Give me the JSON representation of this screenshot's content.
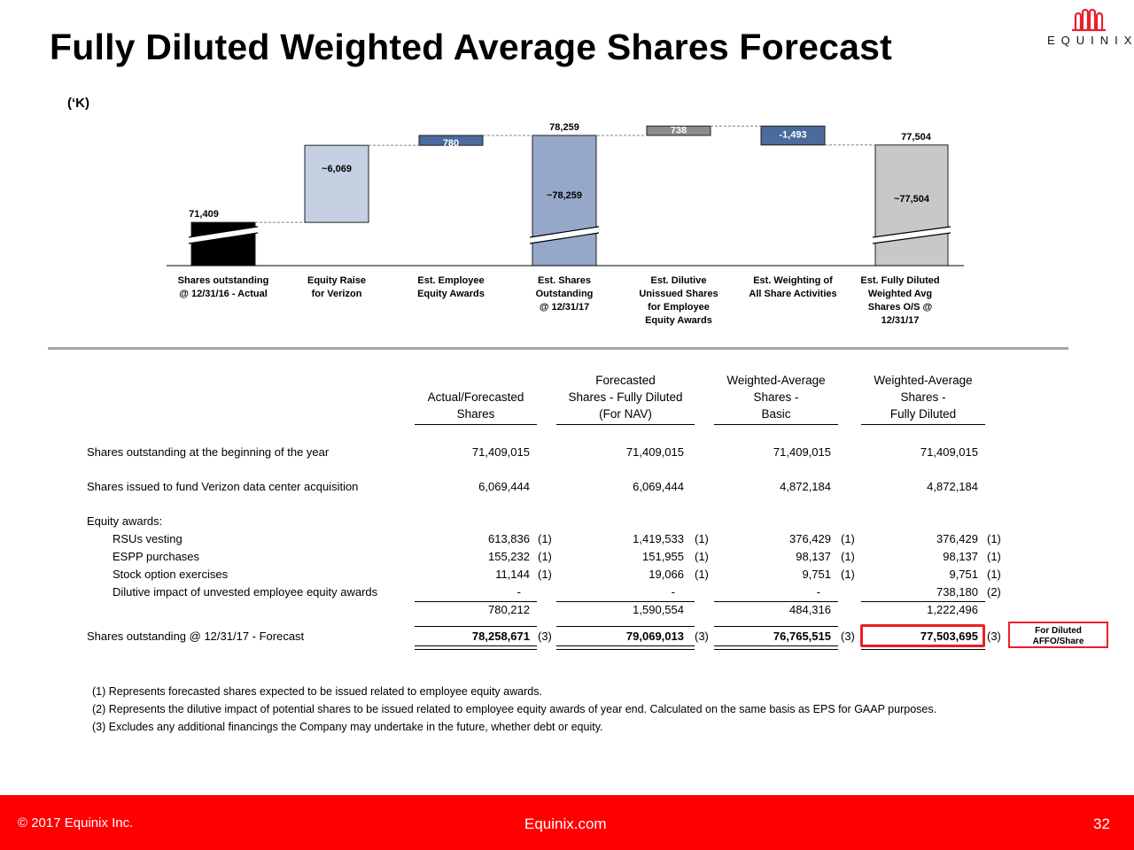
{
  "slide": {
    "title": "Fully Diluted Weighted Average Shares Forecast",
    "brand": "EQUINIX",
    "unit_note": "(‘K)"
  },
  "chart_data": {
    "type": "waterfall",
    "unit": "(‘K)",
    "ylim": [
      68000,
      80000
    ],
    "axis_break": true,
    "colors": {
      "start": "#000000",
      "increase_light": "#c5d0e3",
      "increase_dark": "#4a6b9b",
      "subtotal": "#95a8c9",
      "gray_small": "#8c8c8c",
      "decrease": "#4a6b9b",
      "total": "#c8c8c8"
    },
    "bars": [
      {
        "category": "Shares outstanding @ 12/31/16 - Actual",
        "lines": [
          "Shares outstanding",
          "@ 12/31/16 - Actual"
        ],
        "kind": "start",
        "start": 0,
        "end": 71409,
        "top_label": "71,409",
        "inside_label": "",
        "color": "#000000",
        "break": true
      },
      {
        "category": "Equity Raise for Verizon",
        "lines": [
          "Equity Raise",
          "for Verizon"
        ],
        "kind": "increase",
        "start": 71409,
        "end": 77478,
        "top_label": "",
        "inside_label": "~6,069",
        "color": "#c5d0e3",
        "break": false
      },
      {
        "category": "Est. Employee Equity Awards",
        "lines": [
          "Est. Employee",
          "Equity Awards"
        ],
        "kind": "increase",
        "start": 77478,
        "end": 78259,
        "top_label": "",
        "inside_label": "780",
        "color": "#4a6b9b",
        "break": false
      },
      {
        "category": "Est. Shares Outstanding @ 12/31/17",
        "lines": [
          "Est. Shares",
          "Outstanding",
          "@ 12/31/17"
        ],
        "kind": "subtotal",
        "start": 0,
        "end": 78259,
        "top_label": "78,259",
        "inside_label": "~78,259",
        "color": "#95a8c9",
        "break": true
      },
      {
        "category": "Est. Dilutive Unissued Shares for Employee Equity Awards",
        "lines": [
          "Est. Dilutive",
          "Unissued Shares",
          "for Employee",
          "Equity Awards"
        ],
        "kind": "increase",
        "start": 78259,
        "end": 78997,
        "top_label": "",
        "inside_label": "738",
        "color": "#8c8c8c",
        "break": false
      },
      {
        "category": "Est. Weighting of All Share Activities",
        "lines": [
          "Est. Weighting of",
          "All Share Activities"
        ],
        "kind": "decrease",
        "start": 78997,
        "end": 77504,
        "top_label": "",
        "inside_label": "-1,493",
        "color": "#4a6b9b",
        "break": false
      },
      {
        "category": "Est. Fully Diluted Weighted Avg Shares O/S @ 12/31/17",
        "lines": [
          "Est. Fully Diluted",
          "Weighted Avg",
          "Shares O/S @",
          "12/31/17"
        ],
        "kind": "total",
        "start": 0,
        "end": 77504,
        "top_label": "77,504",
        "inside_label": "~77,504",
        "color": "#c8c8c8",
        "break": true
      }
    ]
  },
  "table": {
    "columns": [
      {
        "lines": [
          "",
          "Actual/Forecasted",
          "Shares"
        ]
      },
      {
        "lines": [
          "Forecasted",
          "Shares - Fully Diluted",
          "(For NAV)"
        ]
      },
      {
        "lines": [
          "Weighted-Average",
          "Shares -",
          "Basic"
        ]
      },
      {
        "lines": [
          "Weighted-Average",
          "Shares -",
          "Fully Diluted"
        ]
      }
    ],
    "rows": {
      "beginning": {
        "label": "Shares outstanding at the beginning of the year",
        "values": [
          "71,409,015",
          "71,409,015",
          "71,409,015",
          "71,409,015"
        ],
        "notes": [
          "",
          "",
          "",
          ""
        ]
      },
      "verizon": {
        "label": "Shares issued to fund Verizon data center acquisition",
        "values": [
          "6,069,444",
          "6,069,444",
          "4,872,184",
          "4,872,184"
        ],
        "notes": [
          "",
          "",
          "",
          ""
        ]
      },
      "equity_header": {
        "label": "Equity awards:"
      },
      "rsus": {
        "label": "RSUs vesting",
        "values": [
          "613,836",
          "1,419,533",
          "376,429",
          "376,429"
        ],
        "notes": [
          "(1)",
          "(1)",
          "(1)",
          "(1)"
        ]
      },
      "espp": {
        "label": "ESPP purchases",
        "values": [
          "155,232",
          "151,955",
          "98,137",
          "98,137"
        ],
        "notes": [
          "(1)",
          "(1)",
          "(1)",
          "(1)"
        ]
      },
      "options": {
        "label": "Stock option exercises",
        "values": [
          "11,144",
          "19,066",
          "9,751",
          "9,751"
        ],
        "notes": [
          "(1)",
          "(1)",
          "(1)",
          "(1)"
        ]
      },
      "dilutive": {
        "label": "Dilutive impact of unvested employee equity awards",
        "values": [
          "-",
          "-",
          "-",
          "738,180"
        ],
        "notes": [
          "",
          "",
          "",
          "(2)"
        ]
      },
      "subtotal": {
        "label": "",
        "values": [
          "780,212",
          "1,590,554",
          "484,316",
          "1,222,496"
        ],
        "notes": [
          "",
          "",
          "",
          ""
        ]
      },
      "ending": {
        "label": "Shares outstanding @ 12/31/17 - Forecast",
        "values": [
          "78,258,671",
          "79,069,013",
          "76,765,515",
          "77,503,695"
        ],
        "notes": [
          "(3)",
          "(3)",
          "(3)",
          "(3)"
        ]
      }
    },
    "callout_lines": [
      "For Diluted",
      "AFFO/Share"
    ]
  },
  "footnotes": [
    "(1)  Represents forecasted shares expected  to be issued related to employee equity awards.",
    "(2)  Represents the dilutive impact of potential shares to be issued related to employee equity awards of year end.  Calculated on the same basis as EPS for GAAP purposes.",
    "(3)  Excludes any additional financings the Company may undertake in the future, whether debt or equity."
  ],
  "footer": {
    "copyright": "© 2017 Equinix Inc.",
    "site": "Equinix.com",
    "page": "32"
  },
  "colors": {
    "footer_bg": "#ff0000",
    "highlight": "#ee1c25",
    "divider": "#a5a5a5"
  }
}
